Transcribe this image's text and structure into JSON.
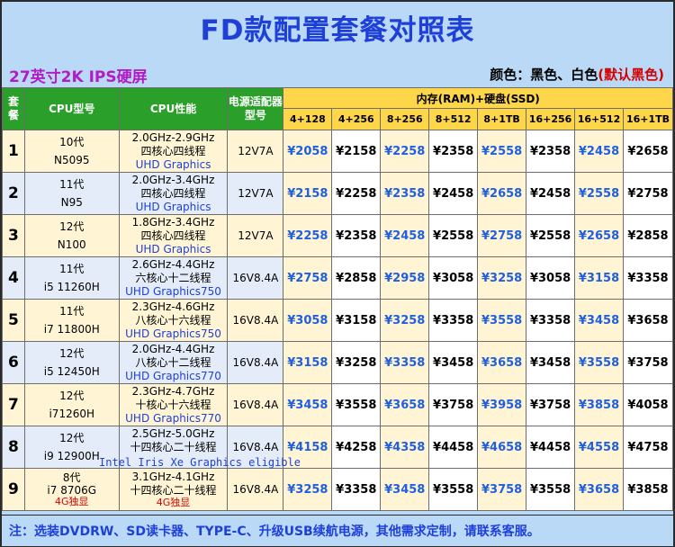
{
  "title": "FD款配置套餐对照表",
  "subtitle_left": "27英寸2K IPS硬屏",
  "colors_label": "颜色：黑色、白色",
  "colors_default": "(默认黑色)",
  "headers": {
    "package": "套餐",
    "cpu_model": "CPU型号",
    "cpu_perf": "CPU性能",
    "psu": "电源适配器型号",
    "memory": "内存(RAM)+硬盘(SSD)",
    "configs": [
      "4+128",
      "4+256",
      "8+256",
      "8+512",
      "8+1TB",
      "16+256",
      "16+512",
      "16+1TB"
    ]
  },
  "rows": [
    {
      "num": "1",
      "gen": "10代",
      "model": "N5095",
      "freq": "2.0GHz-2.9GHz",
      "cores": "四核心四线程",
      "gpu": "UHD Graphics",
      "gpu_note": "",
      "psu": "12V7A",
      "prices": [
        "¥2058",
        "¥2158",
        "¥2258",
        "¥2358",
        "¥2558",
        "¥2358",
        "¥2458",
        "¥2658"
      ]
    },
    {
      "num": "2",
      "gen": "11代",
      "model": "N95",
      "freq": "2.0GHz-3.4GHz",
      "cores": "四核心四线程",
      "gpu": "UHD Graphics",
      "gpu_note": "",
      "psu": "12V7A",
      "prices": [
        "¥2158",
        "¥2258",
        "¥2358",
        "¥2458",
        "¥2658",
        "¥2458",
        "¥2558",
        "¥2758"
      ]
    },
    {
      "num": "3",
      "gen": "12代",
      "model": "N100",
      "freq": "1.8GHz-3.4GHz",
      "cores": "四核心四线程",
      "gpu": "UHD Graphics",
      "gpu_note": "",
      "psu": "12V7A",
      "prices": [
        "¥2258",
        "¥2358",
        "¥2458",
        "¥2558",
        "¥2758",
        "¥2558",
        "¥2658",
        "¥2858"
      ]
    },
    {
      "num": "4",
      "gen": "11代",
      "model": "i5 11260H",
      "freq": "2.6GHz-4.4GHz",
      "cores": "六核心十二线程",
      "gpu": "UHD Graphics750",
      "gpu_note": "",
      "psu": "16V8.4A",
      "prices": [
        "¥2758",
        "¥2858",
        "¥2958",
        "¥3058",
        "¥3258",
        "¥3058",
        "¥3158",
        "¥3358"
      ]
    },
    {
      "num": "5",
      "gen": "11代",
      "model": "i7 11800H",
      "freq": "2.3GHz-4.6GHz",
      "cores": "八核心十六线程",
      "gpu": "UHD Graphics750",
      "gpu_note": "",
      "psu": "16V8.4A",
      "prices": [
        "¥3058",
        "¥3158",
        "¥3258",
        "¥3358",
        "¥3558",
        "¥3358",
        "¥3458",
        "¥3658"
      ]
    },
    {
      "num": "6",
      "gen": "12代",
      "model": "i5 12450H",
      "freq": "2.0GHz-4.4GHz",
      "cores": "八核心十二线程",
      "gpu": "UHD Graphics770",
      "gpu_note": "",
      "psu": "16V8.4A",
      "prices": [
        "¥3158",
        "¥3258",
        "¥3358",
        "¥3458",
        "¥3658",
        "¥3458",
        "¥3558",
        "¥3758"
      ]
    },
    {
      "num": "7",
      "gen": "12代",
      "model": "i71260H",
      "freq": "2.3GHz-4.7GHz",
      "cores": "十核心十六线程",
      "gpu": "UHD Graphics770",
      "gpu_note": "",
      "psu": "16V8.4A",
      "prices": [
        "¥3458",
        "¥3558",
        "¥3658",
        "¥3758",
        "¥3958",
        "¥3758",
        "¥3858",
        "¥4058"
      ]
    },
    {
      "num": "8",
      "gen": "12代",
      "model": "i9 12900H",
      "freq": "2.5GHz-5.0GHz",
      "cores": "十四核心二十线程",
      "gpu": "",
      "gpu_note": "",
      "psu": "16V8.4A",
      "prices": [
        "¥4158",
        "¥4258",
        "¥4358",
        "¥4458",
        "¥4658",
        "¥4458",
        "¥4558",
        "¥4758"
      ]
    },
    {
      "num": "9",
      "gen": "8代",
      "model": "i7 8706G",
      "freq": "3.1GHz-4.1GHz",
      "cores": "十四核心二十线程",
      "gpu": "",
      "gpu_note": "4G独显",
      "psu": "16V8.4A",
      "prices": [
        "¥3258",
        "¥3358",
        "¥3458",
        "¥3558",
        "¥3758",
        "¥3558",
        "¥3658",
        "¥3858"
      ]
    }
  ],
  "row9_model_note": "4G独显",
  "row8_gpu_overflow": "Intel Iris Xe Graphics eligible",
  "footer": "注：选装DVDRW、SD读卡器、TYPE-C、升级USB续航电源，其他需求定制，请联系客服。",
  "colors": {
    "title": "#1f3fd9",
    "subtitle": "#b21cc7",
    "header_green": "#2aa02a",
    "header_yellow": "#fed64a",
    "price_blue": "#1f5fe0",
    "accent_red": "#d40000",
    "background": "#b9d9f6"
  }
}
